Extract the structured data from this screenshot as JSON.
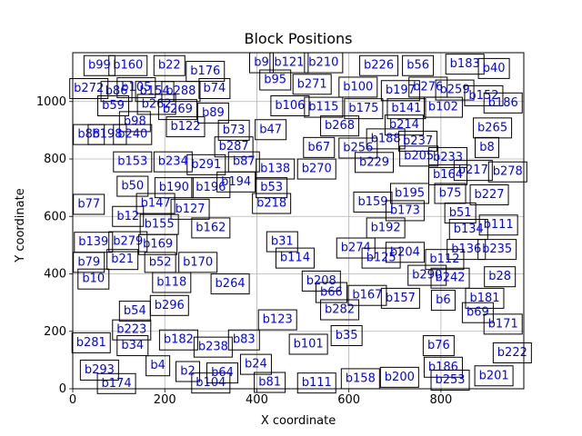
{
  "chart_data": {
    "type": "scatter",
    "title": "Block Positions",
    "xlabel": "X coordinate",
    "ylabel": "Y coordinate",
    "xlim": [
      0,
      980
    ],
    "ylim": [
      0,
      1170
    ],
    "xticks": [
      0,
      200,
      400,
      600,
      800
    ],
    "yticks": [
      0,
      200,
      400,
      600,
      800,
      1000
    ],
    "grid": true,
    "label_color": "#0000ff",
    "edge_color": "#000000",
    "blocks": [
      {
        "label": "b22",
        "x": 210,
        "y": 1125
      },
      {
        "label": "b160",
        "x": 120,
        "y": 1125
      },
      {
        "label": "b99",
        "x": 58,
        "y": 1125
      },
      {
        "label": "b176",
        "x": 288,
        "y": 1105
      },
      {
        "label": "b9",
        "x": 410,
        "y": 1135
      },
      {
        "label": "b121",
        "x": 470,
        "y": 1135
      },
      {
        "label": "b210",
        "x": 545,
        "y": 1135
      },
      {
        "label": "b226",
        "x": 665,
        "y": 1125
      },
      {
        "label": "b56",
        "x": 750,
        "y": 1125
      },
      {
        "label": "b183",
        "x": 852,
        "y": 1130
      },
      {
        "label": "b40",
        "x": 915,
        "y": 1115
      },
      {
        "label": "b272",
        "x": 35,
        "y": 1045
      },
      {
        "label": "b86",
        "x": 95,
        "y": 1035
      },
      {
        "label": "b105",
        "x": 138,
        "y": 1048
      },
      {
        "label": "b154",
        "x": 178,
        "y": 1035
      },
      {
        "label": "b288",
        "x": 235,
        "y": 1035
      },
      {
        "label": "b74",
        "x": 308,
        "y": 1045
      },
      {
        "label": "b95",
        "x": 440,
        "y": 1075
      },
      {
        "label": "b271",
        "x": 520,
        "y": 1060
      },
      {
        "label": "b100",
        "x": 620,
        "y": 1050
      },
      {
        "label": "b197",
        "x": 712,
        "y": 1038
      },
      {
        "label": "b276",
        "x": 772,
        "y": 1050
      },
      {
        "label": "b259",
        "x": 830,
        "y": 1040
      },
      {
        "label": "b152",
        "x": 893,
        "y": 1020
      },
      {
        "label": "b59",
        "x": 88,
        "y": 985
      },
      {
        "label": "b262",
        "x": 182,
        "y": 990
      },
      {
        "label": "b269",
        "x": 228,
        "y": 972
      },
      {
        "label": "b89",
        "x": 305,
        "y": 960
      },
      {
        "label": "b106",
        "x": 472,
        "y": 985
      },
      {
        "label": "b115",
        "x": 545,
        "y": 980
      },
      {
        "label": "b175",
        "x": 632,
        "y": 975
      },
      {
        "label": "b141",
        "x": 725,
        "y": 975
      },
      {
        "label": "b102",
        "x": 805,
        "y": 980
      },
      {
        "label": "b186",
        "x": 935,
        "y": 995
      },
      {
        "label": "b98",
        "x": 135,
        "y": 930
      },
      {
        "label": "b122",
        "x": 245,
        "y": 912
      },
      {
        "label": "b73",
        "x": 350,
        "y": 900
      },
      {
        "label": "b47",
        "x": 430,
        "y": 902
      },
      {
        "label": "b268",
        "x": 580,
        "y": 915
      },
      {
        "label": "b214",
        "x": 720,
        "y": 918
      },
      {
        "label": "b265",
        "x": 912,
        "y": 908
      },
      {
        "label": "b88",
        "x": 35,
        "y": 885
      },
      {
        "label": "b198",
        "x": 75,
        "y": 885
      },
      {
        "label": "b240",
        "x": 130,
        "y": 885
      },
      {
        "label": "b188",
        "x": 680,
        "y": 870
      },
      {
        "label": "b237",
        "x": 750,
        "y": 862
      },
      {
        "label": "b256",
        "x": 620,
        "y": 838
      },
      {
        "label": "b67",
        "x": 535,
        "y": 840
      },
      {
        "label": "b287",
        "x": 350,
        "y": 842
      },
      {
        "label": "b8",
        "x": 900,
        "y": 840
      },
      {
        "label": "b205",
        "x": 752,
        "y": 810
      },
      {
        "label": "b233",
        "x": 815,
        "y": 805
      },
      {
        "label": "b153",
        "x": 130,
        "y": 790
      },
      {
        "label": "b234",
        "x": 218,
        "y": 790
      },
      {
        "label": "b291",
        "x": 290,
        "y": 780
      },
      {
        "label": "b87",
        "x": 372,
        "y": 790
      },
      {
        "label": "b138",
        "x": 440,
        "y": 765
      },
      {
        "label": "b270",
        "x": 530,
        "y": 765
      },
      {
        "label": "b229",
        "x": 655,
        "y": 788
      },
      {
        "label": "b217",
        "x": 870,
        "y": 760
      },
      {
        "label": "b278",
        "x": 945,
        "y": 755
      },
      {
        "label": "b164",
        "x": 815,
        "y": 745
      },
      {
        "label": "b50",
        "x": 130,
        "y": 705
      },
      {
        "label": "b190",
        "x": 220,
        "y": 700
      },
      {
        "label": "b196",
        "x": 300,
        "y": 700
      },
      {
        "label": "b194",
        "x": 355,
        "y": 720
      },
      {
        "label": "b53",
        "x": 432,
        "y": 700
      },
      {
        "label": "b195",
        "x": 732,
        "y": 680
      },
      {
        "label": "b75",
        "x": 820,
        "y": 680
      },
      {
        "label": "b227",
        "x": 905,
        "y": 675
      },
      {
        "label": "b77",
        "x": 35,
        "y": 642
      },
      {
        "label": "b147",
        "x": 180,
        "y": 645
      },
      {
        "label": "b218",
        "x": 432,
        "y": 645
      },
      {
        "label": "b159",
        "x": 652,
        "y": 650
      },
      {
        "label": "b127",
        "x": 255,
        "y": 625
      },
      {
        "label": "b173",
        "x": 722,
        "y": 620
      },
      {
        "label": "b51",
        "x": 842,
        "y": 612
      },
      {
        "label": "b111",
        "x": 925,
        "y": 570
      },
      {
        "label": "b12",
        "x": 120,
        "y": 600
      },
      {
        "label": "b155",
        "x": 188,
        "y": 572
      },
      {
        "label": "b162",
        "x": 300,
        "y": 560
      },
      {
        "label": "b192",
        "x": 680,
        "y": 560
      },
      {
        "label": "b134",
        "x": 860,
        "y": 555
      },
      {
        "label": "b139",
        "x": 45,
        "y": 510
      },
      {
        "label": "b279",
        "x": 120,
        "y": 512
      },
      {
        "label": "b169",
        "x": 185,
        "y": 502
      },
      {
        "label": "b31",
        "x": 455,
        "y": 512
      },
      {
        "label": "b274",
        "x": 615,
        "y": 490
      },
      {
        "label": "b204",
        "x": 722,
        "y": 475
      },
      {
        "label": "b136",
        "x": 855,
        "y": 485
      },
      {
        "label": "b235",
        "x": 922,
        "y": 485
      },
      {
        "label": "b79",
        "x": 35,
        "y": 440
      },
      {
        "label": "b21",
        "x": 108,
        "y": 450
      },
      {
        "label": "b52",
        "x": 190,
        "y": 440
      },
      {
        "label": "b170",
        "x": 272,
        "y": 440
      },
      {
        "label": "b114",
        "x": 483,
        "y": 455
      },
      {
        "label": "b125",
        "x": 670,
        "y": 455
      },
      {
        "label": "b112",
        "x": 808,
        "y": 450
      },
      {
        "label": "b10",
        "x": 45,
        "y": 382
      },
      {
        "label": "b118",
        "x": 215,
        "y": 370
      },
      {
        "label": "b264",
        "x": 342,
        "y": 365
      },
      {
        "label": "b208",
        "x": 540,
        "y": 375
      },
      {
        "label": "b290",
        "x": 770,
        "y": 395
      },
      {
        "label": "b242",
        "x": 820,
        "y": 385
      },
      {
        "label": "b28",
        "x": 928,
        "y": 390
      },
      {
        "label": "b66",
        "x": 562,
        "y": 335
      },
      {
        "label": "b167",
        "x": 640,
        "y": 325
      },
      {
        "label": "b157",
        "x": 712,
        "y": 315
      },
      {
        "label": "b6",
        "x": 805,
        "y": 308
      },
      {
        "label": "b181",
        "x": 895,
        "y": 315
      },
      {
        "label": "b296",
        "x": 210,
        "y": 290
      },
      {
        "label": "b282",
        "x": 580,
        "y": 275
      },
      {
        "label": "b54",
        "x": 135,
        "y": 270
      },
      {
        "label": "b69",
        "x": 880,
        "y": 265
      },
      {
        "label": "b123",
        "x": 445,
        "y": 240
      },
      {
        "label": "b35",
        "x": 595,
        "y": 185
      },
      {
        "label": "b223",
        "x": 128,
        "y": 205
      },
      {
        "label": "b171",
        "x": 935,
        "y": 225
      },
      {
        "label": "b182",
        "x": 230,
        "y": 170
      },
      {
        "label": "b83",
        "x": 372,
        "y": 170
      },
      {
        "label": "b101",
        "x": 512,
        "y": 155
      },
      {
        "label": "b76",
        "x": 795,
        "y": 150
      },
      {
        "label": "b281",
        "x": 40,
        "y": 160
      },
      {
        "label": "b34",
        "x": 130,
        "y": 150
      },
      {
        "label": "b238",
        "x": 305,
        "y": 145
      },
      {
        "label": "b222",
        "x": 955,
        "y": 125
      },
      {
        "label": "b24",
        "x": 398,
        "y": 85
      },
      {
        "label": "b186",
        "x": 805,
        "y": 75
      },
      {
        "label": "b253",
        "x": 820,
        "y": 30
      },
      {
        "label": "b201",
        "x": 915,
        "y": 45
      },
      {
        "label": "b200",
        "x": 710,
        "y": 40
      },
      {
        "label": "b158",
        "x": 625,
        "y": 35
      },
      {
        "label": "b111",
        "x": 530,
        "y": 20
      },
      {
        "label": "b81",
        "x": 428,
        "y": 22
      },
      {
        "label": "b104",
        "x": 300,
        "y": 20
      },
      {
        "label": "b64",
        "x": 325,
        "y": 55
      },
      {
        "label": "b293",
        "x": 58,
        "y": 65
      },
      {
        "label": "b174",
        "x": 95,
        "y": 18
      },
      {
        "label": "b4",
        "x": 185,
        "y": 80
      },
      {
        "label": "b2",
        "x": 250,
        "y": 60
      }
    ]
  }
}
